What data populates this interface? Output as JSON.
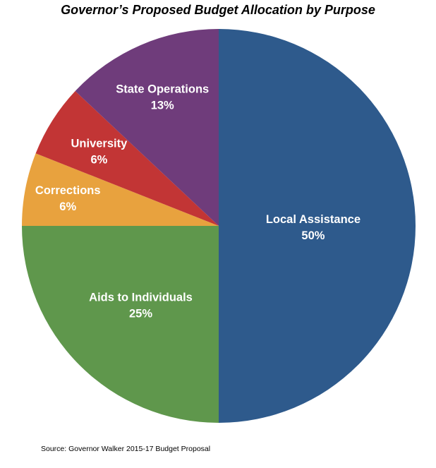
{
  "chart_data": {
    "type": "pie",
    "title": "Governor’s Proposed Budget Allocation by Purpose",
    "slices": [
      {
        "label": "Local Assistance",
        "value": 50,
        "value_label": "50%",
        "color": "#2e5a8c"
      },
      {
        "label": "Aids to Individuals",
        "value": 25,
        "value_label": "25%",
        "color": "#5f974c"
      },
      {
        "label": "Corrections",
        "value": 6,
        "value_label": "6%",
        "color": "#e8a23e"
      },
      {
        "label": "University",
        "value": 6,
        "value_label": "6%",
        "color": "#c23535"
      },
      {
        "label": "State Operations",
        "value": 13,
        "value_label": "13%",
        "color": "#6f3c7b"
      }
    ],
    "direction": "clockwise",
    "start_angle": "12 o'clock",
    "legend": "none",
    "source": "Source: Governor Walker 2015-17 Budget Proposal"
  }
}
